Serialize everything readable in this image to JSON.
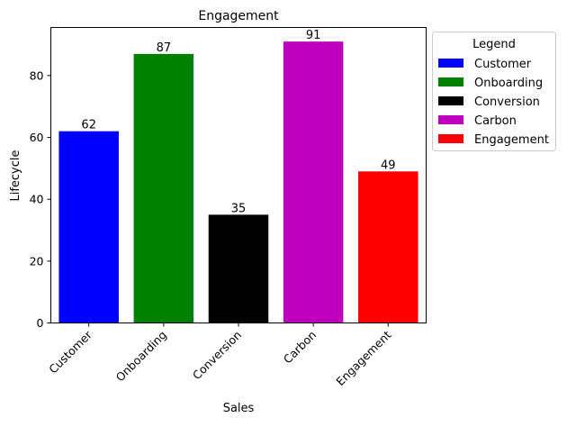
{
  "chart_data": {
    "type": "bar",
    "title": "Engagement",
    "xlabel": "Sales",
    "ylabel": "Lifecycle",
    "categories": [
      "Customer",
      "Onboarding",
      "Conversion",
      "Carbon",
      "Engagement"
    ],
    "values": [
      62,
      87,
      35,
      91,
      49
    ],
    "colors": [
      "#0000ff",
      "#008000",
      "#000000",
      "#bf00bf",
      "#ff0000"
    ],
    "ylim": [
      0,
      95.55
    ],
    "yticks": [
      0,
      20,
      40,
      60,
      80
    ],
    "grid": false,
    "legend": {
      "title": "Legend",
      "placement": "outside-right-top",
      "entries": [
        "Customer",
        "Onboarding",
        "Conversion",
        "Carbon",
        "Engagement"
      ]
    }
  }
}
